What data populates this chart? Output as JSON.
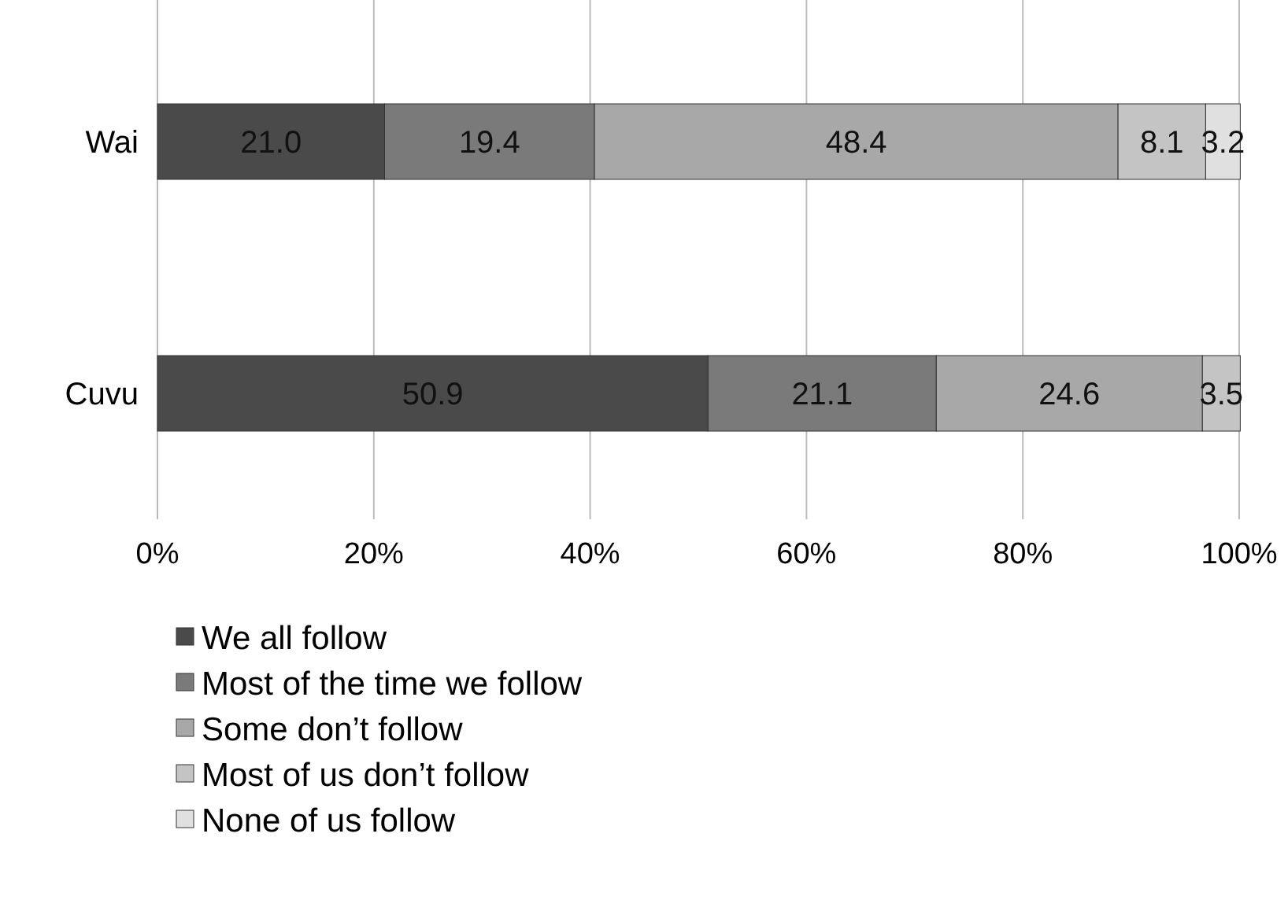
{
  "chart_data": {
    "type": "bar",
    "orientation": "horizontal",
    "stacked": true,
    "categories": [
      "Wai",
      "Cuvu"
    ],
    "series": [
      {
        "name": "We all follow",
        "color": "#4a4a4a",
        "values": [
          21.0,
          50.9
        ],
        "value_labels": [
          "21.0",
          "50.9"
        ]
      },
      {
        "name": "Most of the time we follow",
        "color": "#7a7a7a",
        "values": [
          19.4,
          21.1
        ],
        "value_labels": [
          "19.4",
          "21.1"
        ]
      },
      {
        "name": "Some don’t follow",
        "color": "#a8a8a8",
        "values": [
          48.4,
          24.6
        ],
        "value_labels": [
          "48.4",
          "24.6"
        ]
      },
      {
        "name": "Most of us don’t follow",
        "color": "#c4c4c4",
        "values": [
          8.1,
          3.5
        ],
        "value_labels": [
          "8.1",
          "3.5"
        ]
      },
      {
        "name": "None of us follow",
        "color": "#e0e0e0",
        "values": [
          3.2,
          null
        ],
        "value_labels": [
          "3.2",
          null
        ]
      }
    ],
    "xlim": [
      0,
      100
    ],
    "xticks": [
      {
        "value": 0,
        "label": "0%"
      },
      {
        "value": 20,
        "label": "20%"
      },
      {
        "value": 40,
        "label": "40%"
      },
      {
        "value": 60,
        "label": "60%"
      },
      {
        "value": 80,
        "label": "80%"
      },
      {
        "value": 100,
        "label": "100%"
      }
    ],
    "grid": "x",
    "legend": "bottom"
  }
}
